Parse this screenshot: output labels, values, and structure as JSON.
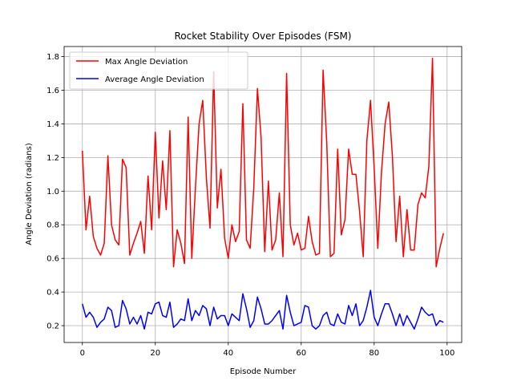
{
  "chart_data": {
    "type": "line",
    "title": "Rocket Stability Over Episodes (FSM)",
    "xlabel": "Episode Number",
    "ylabel": "Angle Deviation (radians)",
    "xlim": [
      -5,
      104
    ],
    "ylim": [
      0.1,
      1.86
    ],
    "xticks": [
      0,
      20,
      40,
      60,
      80,
      100
    ],
    "yticks": [
      0.2,
      0.4,
      0.6,
      0.8,
      1.0,
      1.2,
      1.4,
      1.6,
      1.8
    ],
    "xtick_labels": [
      "0",
      "20",
      "40",
      "60",
      "80",
      "100"
    ],
    "ytick_labels": [
      "0.2",
      "0.4",
      "0.6",
      "0.8",
      "1.0",
      "1.2",
      "1.4",
      "1.6",
      "1.8"
    ],
    "grid": true,
    "legend": "top-left",
    "x": [
      0,
      1,
      2,
      3,
      4,
      5,
      6,
      7,
      8,
      9,
      10,
      11,
      12,
      13,
      14,
      15,
      16,
      17,
      18,
      19,
      20,
      21,
      22,
      23,
      24,
      25,
      26,
      27,
      28,
      29,
      30,
      31,
      32,
      33,
      34,
      35,
      36,
      37,
      38,
      39,
      40,
      41,
      42,
      43,
      44,
      45,
      46,
      47,
      48,
      49,
      50,
      51,
      52,
      53,
      54,
      55,
      56,
      57,
      58,
      59,
      60,
      61,
      62,
      63,
      64,
      65,
      66,
      67,
      68,
      69,
      70,
      71,
      72,
      73,
      74,
      75,
      76,
      77,
      78,
      79,
      80,
      81,
      82,
      83,
      84,
      85,
      86,
      87,
      88,
      89,
      90,
      91,
      92,
      93,
      94,
      95,
      96,
      97,
      98,
      99
    ],
    "series": [
      {
        "name": "Max Angle Deviation",
        "color": "#ff0000",
        "values": [
          1.24,
          0.77,
          0.97,
          0.73,
          0.66,
          0.62,
          0.69,
          1.21,
          0.8,
          0.71,
          0.68,
          1.19,
          1.14,
          0.62,
          0.69,
          0.75,
          0.82,
          0.63,
          1.09,
          0.77,
          1.35,
          0.84,
          1.18,
          0.89,
          1.36,
          0.55,
          0.77,
          0.69,
          0.57,
          1.44,
          0.6,
          1.02,
          1.4,
          1.54,
          1.08,
          0.78,
          1.71,
          0.9,
          1.13,
          0.72,
          0.6,
          0.8,
          0.7,
          0.76,
          1.52,
          0.71,
          0.66,
          1.02,
          1.61,
          1.32,
          0.64,
          1.06,
          0.65,
          0.71,
          0.99,
          0.61,
          1.7,
          0.8,
          0.68,
          0.75,
          0.65,
          0.66,
          0.85,
          0.7,
          0.62,
          0.63,
          1.72,
          1.29,
          0.61,
          0.63,
          1.25,
          0.74,
          0.83,
          1.25,
          1.1,
          1.1,
          0.88,
          0.61,
          1.3,
          1.54,
          1.14,
          0.66,
          1.11,
          1.4,
          1.53,
          1.21,
          0.7,
          0.97,
          0.61,
          0.89,
          0.65,
          0.65,
          0.92,
          0.99,
          0.96,
          1.15,
          1.79,
          0.55,
          0.66,
          0.75
        ]
      },
      {
        "name": "Average Angle Deviation",
        "color": "#0000ff",
        "values": [
          0.33,
          0.25,
          0.28,
          0.25,
          0.19,
          0.22,
          0.24,
          0.31,
          0.29,
          0.19,
          0.2,
          0.35,
          0.3,
          0.21,
          0.25,
          0.21,
          0.26,
          0.18,
          0.28,
          0.27,
          0.33,
          0.34,
          0.26,
          0.25,
          0.34,
          0.19,
          0.21,
          0.24,
          0.23,
          0.36,
          0.23,
          0.29,
          0.26,
          0.32,
          0.3,
          0.2,
          0.31,
          0.24,
          0.26,
          0.26,
          0.2,
          0.27,
          0.25,
          0.23,
          0.39,
          0.3,
          0.19,
          0.23,
          0.37,
          0.3,
          0.21,
          0.21,
          0.23,
          0.26,
          0.29,
          0.18,
          0.38,
          0.28,
          0.2,
          0.21,
          0.22,
          0.32,
          0.31,
          0.2,
          0.18,
          0.2,
          0.26,
          0.28,
          0.21,
          0.2,
          0.27,
          0.22,
          0.21,
          0.32,
          0.26,
          0.33,
          0.2,
          0.23,
          0.31,
          0.41,
          0.25,
          0.2,
          0.27,
          0.33,
          0.33,
          0.27,
          0.2,
          0.27,
          0.2,
          0.26,
          0.22,
          0.18,
          0.24,
          0.31,
          0.28,
          0.26,
          0.27,
          0.2,
          0.23,
          0.22
        ]
      }
    ]
  }
}
